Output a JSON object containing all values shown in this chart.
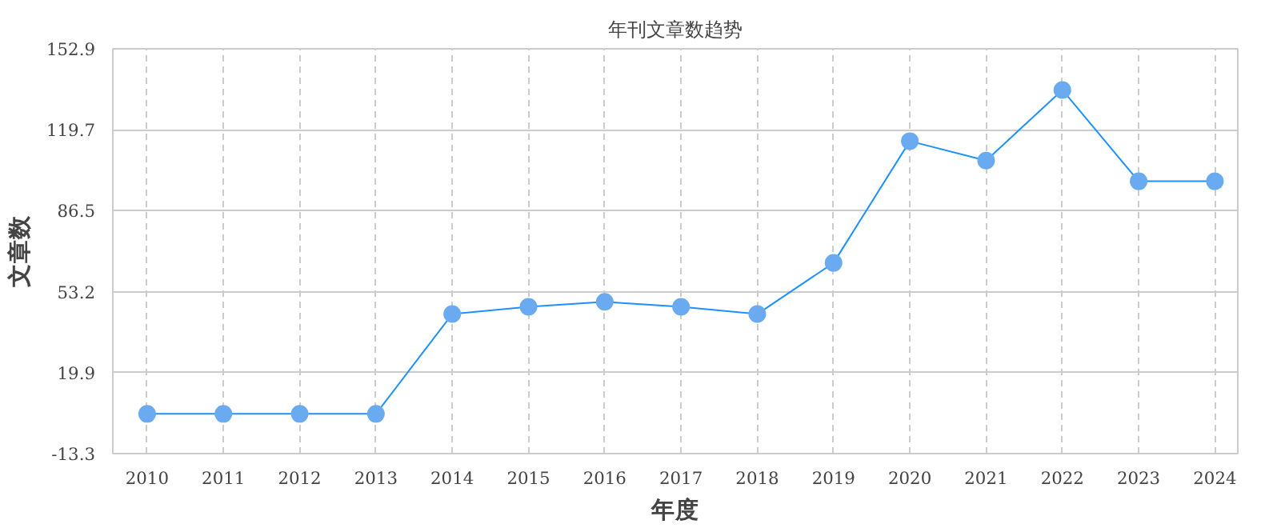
{
  "chart_data": {
    "type": "line",
    "title": "年刊文章数趋势",
    "xlabel": "年度",
    "ylabel": "文章数",
    "categories": [
      "2010",
      "2011",
      "2012",
      "2013",
      "2014",
      "2015",
      "2016",
      "2017",
      "2018",
      "2019",
      "2020",
      "2021",
      "2022",
      "2023",
      "2024"
    ],
    "series": [
      {
        "color": "#1e90ff",
        "values": [
          3,
          3,
          3,
          3,
          44,
          47,
          49,
          47,
          44,
          65,
          115,
          107,
          136,
          98.5,
          98.5
        ]
      }
    ],
    "ylim": [
      -13.3,
      152.9
    ],
    "yticks": [
      -13.3,
      19.9,
      53.2,
      86.5,
      119.7,
      152.9
    ],
    "grid": true,
    "marker": "circle",
    "line_style": "solid"
  }
}
